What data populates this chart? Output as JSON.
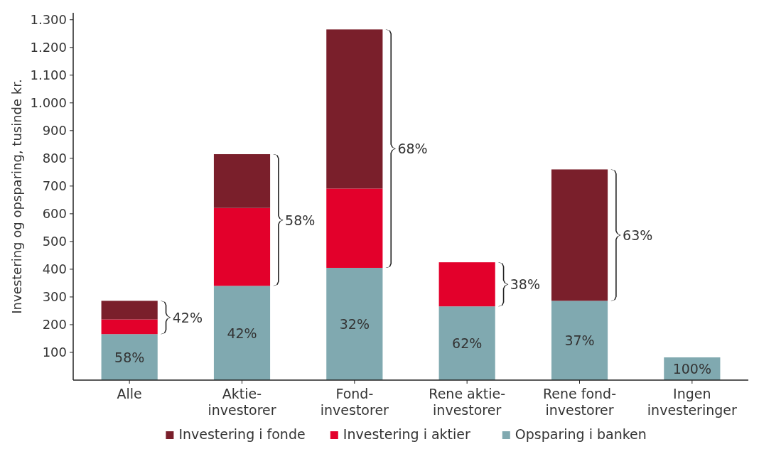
{
  "chart_data": {
    "type": "bar",
    "stacked": true,
    "ylabel": "Investering og opsparing, tusinde kr.",
    "categories": [
      "Alle",
      "Aktie-\ninvestorer",
      "Fond-\ninvestorer",
      "Rene aktie-\ninvestorer",
      "Rene fond-\ninvestorer",
      "Ingen\ninvesteringer"
    ],
    "series": [
      {
        "name": "Opsparing i banken",
        "color": "#80a9b0",
        "values": [
          166,
          340,
          405,
          266,
          286,
          82
        ]
      },
      {
        "name": "Investering i aktier",
        "color": "#e3002b",
        "values": [
          53,
          281,
          286,
          159,
          null,
          null
        ]
      },
      {
        "name": "Investering i fonde",
        "color": "#7a1f2b",
        "values": [
          67,
          194,
          574,
          null,
          474,
          null
        ]
      }
    ],
    "ylim": [
      0,
      1325
    ],
    "yticks": [
      100,
      200,
      300,
      400,
      500,
      600,
      700,
      800,
      900,
      {
        "value": 1000,
        "label": "1.000"
      },
      {
        "value": 1100,
        "label": "1.100"
      },
      {
        "value": 1200,
        "label": "1.200"
      },
      {
        "value": 1300,
        "label": "1.300"
      }
    ],
    "annotations": [
      "42%",
      "58%",
      "68%",
      "38%",
      "63%",
      "58%",
      "42%",
      "32%",
      "62%",
      "37%",
      "100%"
    ],
    "grid": false,
    "legend": "bottom"
  }
}
